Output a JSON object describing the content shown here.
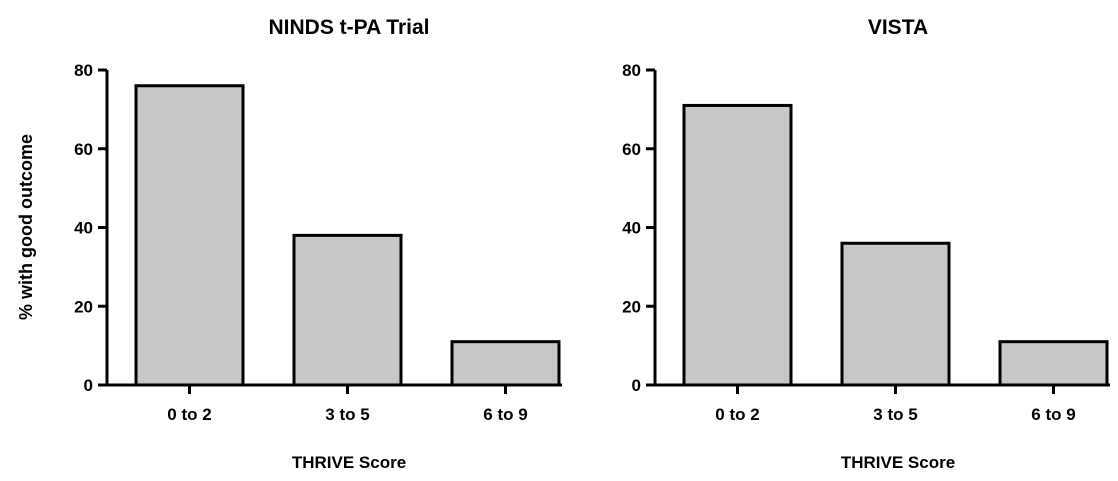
{
  "chart_data": [
    {
      "type": "bar",
      "title": "NINDS t-PA Trial",
      "xlabel": "THRIVE Score",
      "ylabel": "% with good outcome",
      "categories": [
        "0 to 2",
        "3 to 5",
        "6 to 9"
      ],
      "values": [
        76,
        38,
        11
      ],
      "ylim": [
        0,
        80
      ],
      "yticks": [
        0,
        20,
        40,
        60,
        80
      ],
      "grid": false,
      "bar_color": "#c8c8c8",
      "edge_color": "#000000"
    },
    {
      "type": "bar",
      "title": "VISTA",
      "xlabel": "THRIVE Score",
      "ylabel": "",
      "categories": [
        "0 to 2",
        "3 to 5",
        "6 to 9"
      ],
      "values": [
        71,
        36,
        11
      ],
      "ylim": [
        0,
        80
      ],
      "yticks": [
        0,
        20,
        40,
        60,
        80
      ],
      "grid": false,
      "bar_color": "#c8c8c8",
      "edge_color": "#000000"
    }
  ]
}
